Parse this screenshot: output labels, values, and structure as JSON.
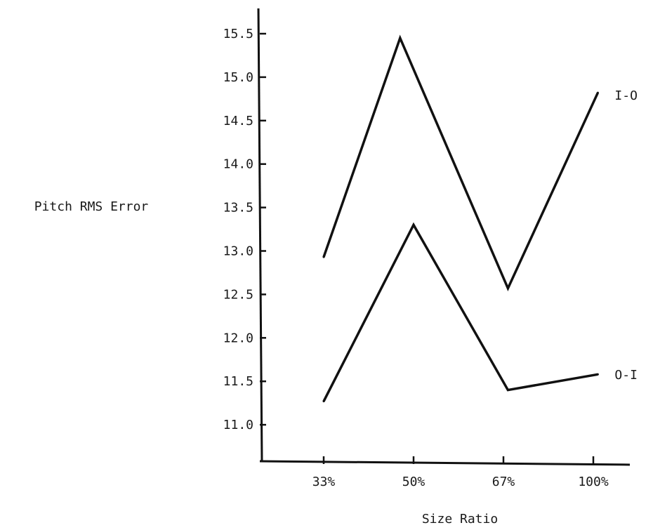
{
  "chart_data": {
    "type": "line",
    "title": "",
    "xlabel": "Size Ratio",
    "ylabel": "Pitch RMS Error",
    "categories": [
      "33%",
      "50%",
      "67%",
      "100%"
    ],
    "ylim": [
      10.5,
      15.7
    ],
    "yticks": [
      "11.0",
      "11.5",
      "12.0",
      "12.5",
      "13.0",
      "13.5",
      "14.0",
      "14.5",
      "15.0",
      "15.5"
    ],
    "grid": false,
    "legend": "inline labels at right end of each line",
    "series": [
      {
        "name": "I-O",
        "x": [
          0,
          0.85,
          2.05,
          3.05
        ],
        "values": [
          12.93,
          15.45,
          12.57,
          14.82
        ]
      },
      {
        "name": "O-I",
        "x": [
          0,
          1.0,
          2.05,
          3.05
        ],
        "values": [
          11.27,
          13.3,
          11.4,
          11.58
        ]
      }
    ]
  }
}
